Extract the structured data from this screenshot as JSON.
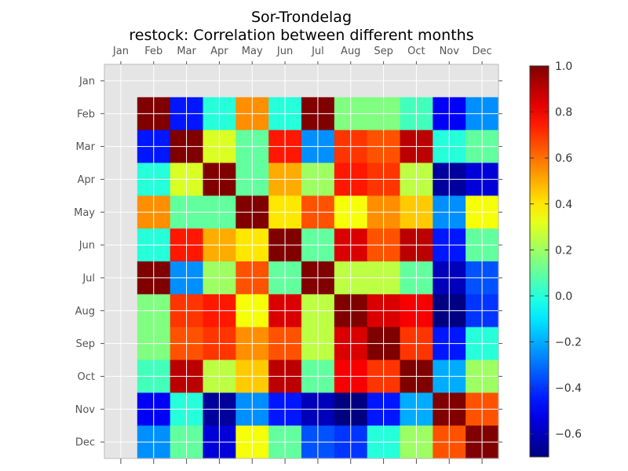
{
  "chart_data": {
    "type": "heatmap",
    "title": "Sor-Trondelag",
    "subtitle": "restock: Correlation between different months",
    "x_categories": [
      "Jan",
      "Feb",
      "Mar",
      "Apr",
      "May",
      "Jun",
      "Jul",
      "Aug",
      "Sep",
      "Oct",
      "Nov",
      "Dec"
    ],
    "y_categories": [
      "Jan",
      "Feb",
      "Mar",
      "Apr",
      "May",
      "Jun",
      "Jul",
      "Aug",
      "Sep",
      "Oct",
      "Nov",
      "Dec"
    ],
    "values": [
      [
        null,
        null,
        null,
        null,
        null,
        null,
        null,
        null,
        null,
        null,
        null,
        null
      ],
      [
        null,
        1.0,
        -0.45,
        0.0,
        0.55,
        0.0,
        1.0,
        0.15,
        0.15,
        0.05,
        -0.5,
        -0.25
      ],
      [
        null,
        -0.45,
        1.0,
        0.3,
        0.1,
        0.75,
        -0.25,
        0.7,
        0.65,
        0.9,
        0.0,
        0.1
      ],
      [
        null,
        0.0,
        0.3,
        1.0,
        0.1,
        0.5,
        0.2,
        0.75,
        0.7,
        0.25,
        -0.65,
        -0.55
      ],
      [
        null,
        0.55,
        0.1,
        0.1,
        1.0,
        0.4,
        0.65,
        0.35,
        0.55,
        0.45,
        -0.25,
        0.35
      ],
      [
        null,
        0.0,
        0.75,
        0.5,
        0.4,
        1.0,
        0.1,
        0.85,
        0.65,
        0.9,
        -0.45,
        0.1
      ],
      [
        null,
        1.0,
        -0.25,
        0.2,
        0.65,
        0.1,
        1.0,
        0.25,
        0.25,
        0.1,
        -0.6,
        -0.35
      ],
      [
        null,
        0.15,
        0.7,
        0.75,
        0.35,
        0.85,
        0.25,
        1.0,
        0.85,
        0.8,
        -0.7,
        -0.4
      ],
      [
        null,
        0.15,
        0.65,
        0.7,
        0.55,
        0.65,
        0.25,
        0.85,
        1.0,
        0.7,
        -0.45,
        0.0
      ],
      [
        null,
        0.05,
        0.9,
        0.25,
        0.45,
        0.9,
        0.1,
        0.8,
        0.7,
        1.0,
        -0.2,
        0.2
      ],
      [
        null,
        -0.5,
        0.0,
        -0.65,
        -0.25,
        -0.45,
        -0.6,
        -0.7,
        -0.45,
        -0.2,
        1.0,
        0.65
      ],
      [
        null,
        -0.25,
        0.1,
        -0.55,
        0.35,
        0.1,
        -0.35,
        -0.4,
        0.0,
        0.2,
        0.65,
        1.0
      ]
    ],
    "missing_color": "#e5e5e5",
    "colorscale": "jet",
    "vmin": -0.7,
    "vmax": 1.0,
    "colorbar_ticks": [
      "1.0",
      "0.8",
      "0.6",
      "0.4",
      "0.2",
      "0.0",
      "−0.2",
      "−0.4",
      "−0.6"
    ],
    "colorbar_tick_values": [
      1.0,
      0.8,
      0.6,
      0.4,
      0.2,
      0.0,
      -0.2,
      -0.4,
      -0.6
    ],
    "grid": true
  }
}
